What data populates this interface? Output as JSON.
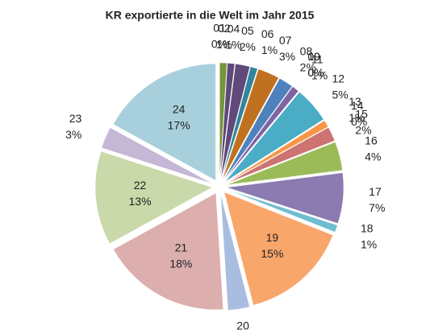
{
  "chart_data": {
    "type": "pie",
    "title": "KR exportierte in die Welt im Jahr 2015",
    "categories": [
      "01",
      "02",
      "04",
      "05",
      "06",
      "07",
      "08",
      "09",
      "10",
      "11",
      "12",
      "13",
      "14",
      "15",
      "16",
      "17",
      "18",
      "19",
      "20",
      "21",
      "22",
      "23",
      "24"
    ],
    "values": [
      0,
      1,
      1,
      2,
      1,
      3,
      2,
      0,
      0,
      1,
      5,
      1,
      0,
      2,
      4,
      7,
      1,
      15,
      3,
      18,
      13,
      3,
      17
    ],
    "value_labels": [
      "0%",
      "1%",
      "1%",
      "2%",
      "1%",
      "3%",
      "2%",
      "0%",
      "0%",
      "1%",
      "5%",
      "1%",
      "0%",
      "2%",
      "4%",
      "7%",
      "1%",
      "15%",
      "3%",
      "18%",
      "13%",
      "3%",
      "17%"
    ],
    "colors": [
      "#953735",
      "#77933c",
      "#5f497a",
      "#604a7b",
      "#31859c",
      "#c0711f",
      "#4f81bd",
      "#c0504d",
      "#9bbb59",
      "#8064a2",
      "#4bacc6",
      "#f79646",
      "#2c4d75",
      "#cd7371",
      "#9bbb59",
      "#8b7bb0",
      "#6fbdd1",
      "#f9a66b",
      "#a9bde0",
      "#dcaeae",
      "#c9d9a9",
      "#c4b8d6",
      "#a7d0dc"
    ]
  }
}
